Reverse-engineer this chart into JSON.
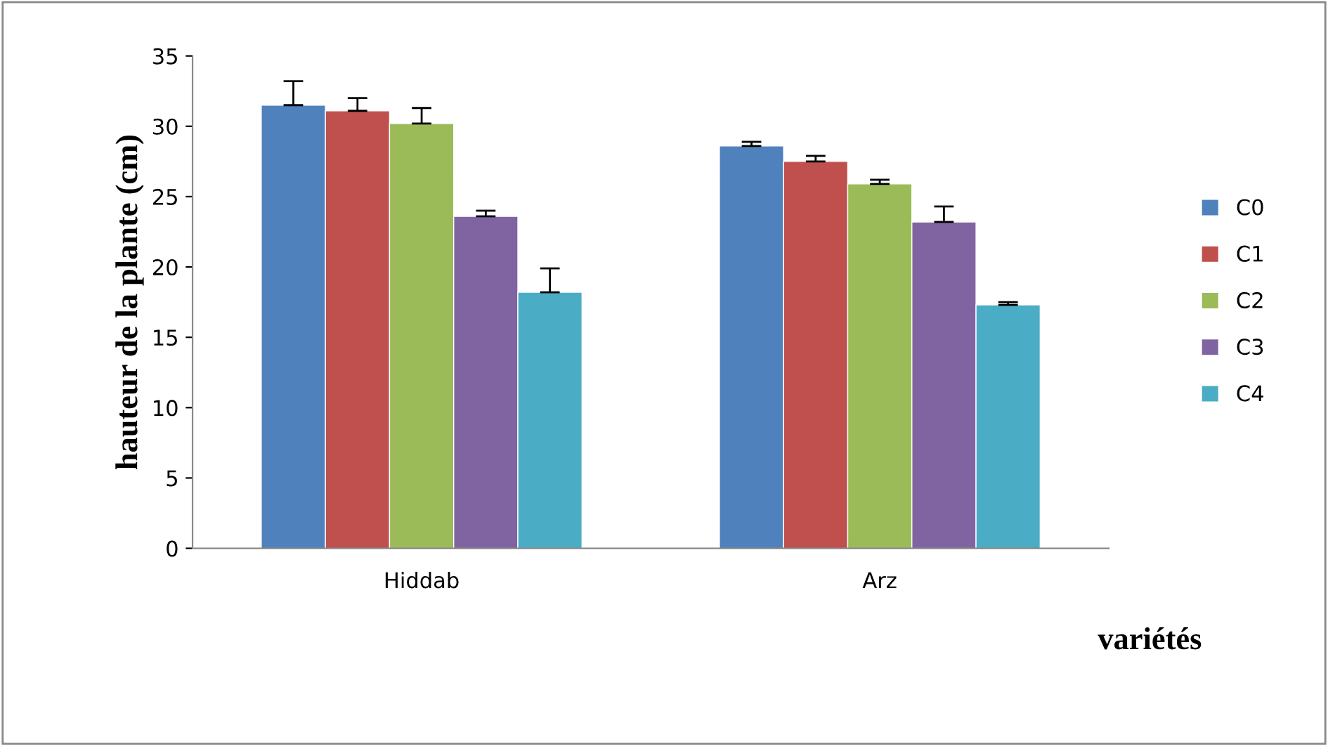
{
  "chart_data": {
    "type": "bar",
    "xlabel": "variétés",
    "ylabel": "hauteur de la plante (cm)",
    "categories": [
      "Hiddab",
      "Arz"
    ],
    "series": [
      {
        "name": "C0",
        "color": "#4f81bd",
        "values": [
          31.5,
          28.6
        ],
        "errors": [
          [
            31.5,
            33.2
          ],
          [
            28.6,
            28.9
          ]
        ]
      },
      {
        "name": "C1",
        "color": "#c0504d",
        "values": [
          31.1,
          27.5
        ],
        "errors": [
          [
            31.1,
            32.0
          ],
          [
            27.5,
            27.9
          ]
        ]
      },
      {
        "name": "C2",
        "color": "#9bbb59",
        "values": [
          30.2,
          25.9
        ],
        "errors": [
          [
            30.2,
            31.3
          ],
          [
            25.9,
            26.2
          ]
        ]
      },
      {
        "name": "C3",
        "color": "#8064a2",
        "values": [
          23.6,
          23.2
        ],
        "errors": [
          [
            23.6,
            24.0
          ],
          [
            23.2,
            24.3
          ]
        ]
      },
      {
        "name": "C4",
        "color": "#4bacc6",
        "values": [
          18.2,
          17.3
        ],
        "errors": [
          [
            18.2,
            19.9
          ],
          [
            17.3,
            17.5
          ]
        ]
      }
    ],
    "ylim": [
      0,
      35
    ],
    "yticks": [
      0,
      5,
      10,
      15,
      20,
      25,
      30,
      35
    ],
    "grid": false,
    "legend": "right"
  }
}
